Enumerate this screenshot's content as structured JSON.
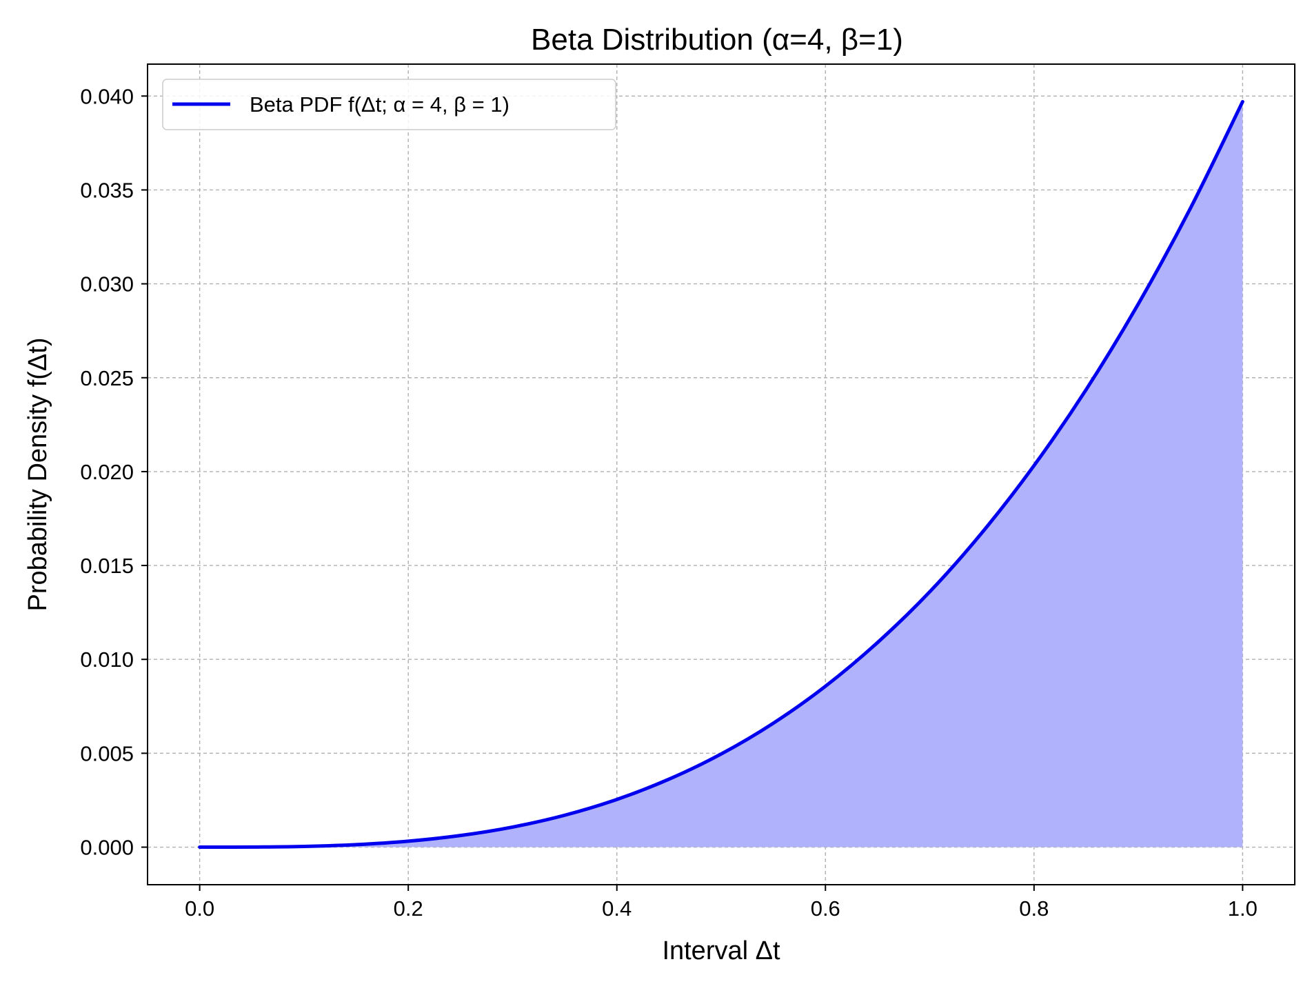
{
  "chart_data": {
    "type": "area",
    "title": "Beta Distribution (α=4, β=1)",
    "xlabel": "Interval Δt",
    "ylabel": "Probability Density f(Δt)",
    "xlim": [
      -0.05,
      1.05
    ],
    "ylim": [
      -0.002,
      0.0417
    ],
    "xticks": [
      0.0,
      0.2,
      0.4,
      0.6,
      0.8,
      1.0
    ],
    "xtick_labels": [
      "0.0",
      "0.2",
      "0.4",
      "0.6",
      "0.8",
      "1.0"
    ],
    "yticks": [
      0.0,
      0.005,
      0.01,
      0.015,
      0.02,
      0.025,
      0.03,
      0.035,
      0.04
    ],
    "ytick_labels": [
      "0.000",
      "0.005",
      "0.010",
      "0.015",
      "0.020",
      "0.025",
      "0.030",
      "0.035",
      "0.040"
    ],
    "grid": true,
    "legend_position": "top-left",
    "series": [
      {
        "name": "Beta PDF f(Δt; α = 4, β = 1)",
        "color": "#0000ee",
        "fill_color": "#b0b2fb",
        "x": [
          0.0,
          0.05,
          0.1,
          0.15,
          0.2,
          0.25,
          0.3,
          0.35,
          0.4,
          0.45,
          0.5,
          0.55,
          0.6,
          0.65,
          0.7,
          0.75,
          0.8,
          0.85,
          0.9,
          0.95,
          1.0
        ],
        "y": [
          0.0,
          4.96e-06,
          3.97e-05,
          0.000134,
          0.000318,
          0.00062,
          0.00107,
          0.0017,
          0.00254,
          0.00362,
          0.00496,
          0.0066,
          0.00857,
          0.0109,
          0.0136,
          0.01674,
          0.02032,
          0.02437,
          0.02893,
          0.03403,
          0.0397
        ]
      }
    ]
  }
}
